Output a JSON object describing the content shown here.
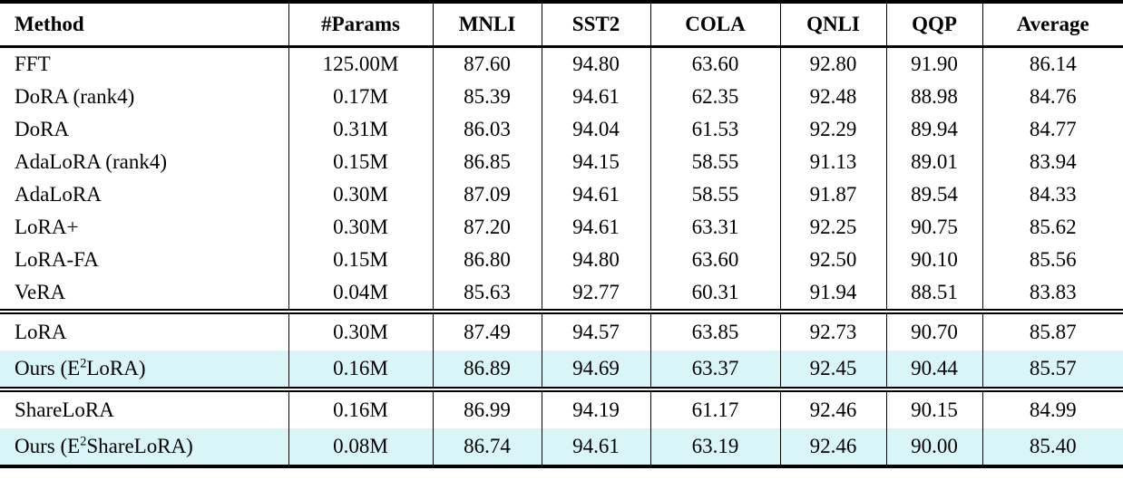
{
  "table": {
    "highlight_color": "#d9f5f7",
    "columns": [
      "Method",
      "#Params",
      "MNLI",
      "SST2",
      "COLA",
      "QNLI",
      "QQP",
      "Average"
    ],
    "sections": [
      {
        "rows": [
          {
            "method": {
              "pre": "FFT",
              "sup": "",
              "post": ""
            },
            "values": [
              "125.00M",
              "87.60",
              "94.80",
              "63.60",
              "92.80",
              "91.90",
              "86.14"
            ],
            "highlight": false
          },
          {
            "method": {
              "pre": "DoRA (rank4)",
              "sup": "",
              "post": ""
            },
            "values": [
              "0.17M",
              "85.39",
              "94.61",
              "62.35",
              "92.48",
              "88.98",
              "84.76"
            ],
            "highlight": false
          },
          {
            "method": {
              "pre": "DoRA",
              "sup": "",
              "post": ""
            },
            "values": [
              "0.31M",
              "86.03",
              "94.04",
              "61.53",
              "92.29",
              "89.94",
              "84.77"
            ],
            "highlight": false
          },
          {
            "method": {
              "pre": "AdaLoRA (rank4)",
              "sup": "",
              "post": ""
            },
            "values": [
              "0.15M",
              "86.85",
              "94.15",
              "58.55",
              "91.13",
              "89.01",
              "83.94"
            ],
            "highlight": false
          },
          {
            "method": {
              "pre": "AdaLoRA",
              "sup": "",
              "post": ""
            },
            "values": [
              "0.30M",
              "87.09",
              "94.61",
              "58.55",
              "91.87",
              "89.54",
              "84.33"
            ],
            "highlight": false
          },
          {
            "method": {
              "pre": "LoRA+",
              "sup": "",
              "post": ""
            },
            "values": [
              "0.30M",
              "87.20",
              "94.61",
              "63.31",
              "92.25",
              "90.75",
              "85.62"
            ],
            "highlight": false
          },
          {
            "method": {
              "pre": "LoRA-FA",
              "sup": "",
              "post": ""
            },
            "values": [
              "0.15M",
              "86.80",
              "94.80",
              "63.60",
              "92.50",
              "90.10",
              "85.56"
            ],
            "highlight": false
          },
          {
            "method": {
              "pre": "VeRA",
              "sup": "",
              "post": ""
            },
            "values": [
              "0.04M",
              "85.63",
              "92.77",
              "60.31",
              "91.94",
              "88.51",
              "83.83"
            ],
            "highlight": false
          }
        ]
      },
      {
        "rows": [
          {
            "method": {
              "pre": "LoRA",
              "sup": "",
              "post": ""
            },
            "values": [
              "0.30M",
              "87.49",
              "94.57",
              "63.85",
              "92.73",
              "90.70",
              "85.87"
            ],
            "highlight": false
          },
          {
            "method": {
              "pre": "Ours (E",
              "sup": "2",
              "post": "LoRA)"
            },
            "values": [
              "0.16M",
              "86.89",
              "94.69",
              "63.37",
              "92.45",
              "90.44",
              "85.57"
            ],
            "highlight": true
          }
        ]
      },
      {
        "rows": [
          {
            "method": {
              "pre": "ShareLoRA",
              "sup": "",
              "post": ""
            },
            "values": [
              "0.16M",
              "86.99",
              "94.19",
              "61.17",
              "92.46",
              "90.15",
              "84.99"
            ],
            "highlight": false
          },
          {
            "method": {
              "pre": "Ours (E",
              "sup": "2",
              "post": "ShareLoRA)"
            },
            "values": [
              "0.08M",
              "86.74",
              "94.61",
              "63.19",
              "92.46",
              "90.00",
              "85.40"
            ],
            "highlight": true
          }
        ]
      }
    ]
  }
}
